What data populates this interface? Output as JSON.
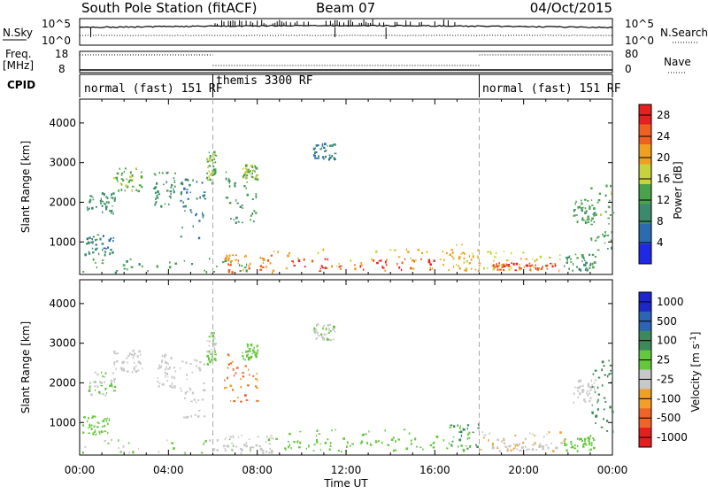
{
  "header": {
    "station": "South Pole Station (fitACF)",
    "beam": "Beam 07",
    "date": "04/Oct/2015"
  },
  "side_labels": {
    "nsky": "N.Sky",
    "nsearch": "N.Search",
    "freq_line1": "Freq.",
    "freq_line2": "[MHz]",
    "nave": "Nave",
    "cpid": "CPID"
  },
  "noise_panel": {
    "left_ticks": [
      "10^5",
      "10^0"
    ],
    "right_ticks": [
      "10^5",
      "10^0"
    ]
  },
  "freq_panel": {
    "left_ticks": [
      "18",
      "8"
    ],
    "right_ticks": [
      "80",
      "0"
    ]
  },
  "cpid_segments": [
    {
      "label": "normal (fast) 151 RF",
      "start_h": 0,
      "end_h": 6
    },
    {
      "label": "themis 3300 RF",
      "start_h": 6,
      "end_h": 18
    },
    {
      "label": "normal (fast) 151 RF",
      "start_h": 18,
      "end_h": 24
    }
  ],
  "chart_data": [
    {
      "type": "heatmap",
      "name": "power",
      "ylabel": "Slant Range [km]",
      "ylim": [
        180,
        4600
      ],
      "yticks": [
        1000,
        2000,
        3000,
        4000
      ],
      "xlim_hours": [
        0,
        24
      ],
      "colorbar_label": "Power [dB]",
      "colorbar_ticks": [
        "4",
        "8",
        "12",
        "16",
        "20",
        "24",
        "28"
      ],
      "colorbar_range": [
        0,
        30
      ],
      "colors": [
        "#1e28e6",
        "#2d6bb0",
        "#3c8a6e",
        "#4aa24a",
        "#c8d23c",
        "#f0a020",
        "#f06020",
        "#e62020"
      ],
      "echo_regions": [
        {
          "t0": 0.1,
          "t1": 1.5,
          "r0": 700,
          "r1": 1200,
          "val": 9
        },
        {
          "t0": 0.3,
          "t1": 1.6,
          "r0": 1700,
          "r1": 2300,
          "val": 10
        },
        {
          "t0": 1.5,
          "t1": 2.8,
          "r0": 2300,
          "r1": 2900,
          "val": 14
        },
        {
          "t0": 3.3,
          "t1": 4.3,
          "r0": 1900,
          "r1": 2800,
          "val": 10
        },
        {
          "t0": 4.5,
          "t1": 5.7,
          "r0": 1100,
          "r1": 2600,
          "val": 9
        },
        {
          "t0": 5.7,
          "t1": 6.1,
          "r0": 2500,
          "r1": 3300,
          "val": 14
        },
        {
          "t0": 6.5,
          "t1": 8.0,
          "r0": 1500,
          "r1": 2800,
          "val": 11
        },
        {
          "t0": 7.3,
          "t1": 8.0,
          "r0": 2600,
          "r1": 3000,
          "val": 15
        },
        {
          "t0": 0.0,
          "t1": 8.7,
          "r0": 250,
          "r1": 600,
          "val": 12
        },
        {
          "t0": 6.5,
          "t1": 8.7,
          "r0": 250,
          "r1": 700,
          "val": 22
        },
        {
          "t0": 8.7,
          "t1": 16.5,
          "r0": 280,
          "r1": 850,
          "val": 19
        },
        {
          "t0": 9.0,
          "t1": 16.0,
          "r0": 280,
          "r1": 600,
          "val": 27
        },
        {
          "t0": 16.5,
          "t1": 18.0,
          "r0": 300,
          "r1": 1000,
          "val": 20
        },
        {
          "t0": 18.0,
          "t1": 21.8,
          "r0": 300,
          "r1": 800,
          "val": 18
        },
        {
          "t0": 18.5,
          "t1": 21.5,
          "r0": 300,
          "r1": 500,
          "val": 26
        },
        {
          "t0": 21.8,
          "t1": 23.2,
          "r0": 300,
          "r1": 700,
          "val": 11
        },
        {
          "t0": 22.2,
          "t1": 23.2,
          "r0": 1500,
          "r1": 2100,
          "val": 12
        },
        {
          "t0": 23.0,
          "t1": 24.0,
          "r0": 800,
          "r1": 2600,
          "val": 13
        },
        {
          "t0": 10.5,
          "t1": 11.5,
          "r0": 3100,
          "r1": 3500,
          "val": 8
        }
      ]
    },
    {
      "type": "heatmap",
      "name": "velocity",
      "ylabel": "Slant Range [km]",
      "ylim": [
        180,
        4600
      ],
      "yticks": [
        1000,
        2000,
        3000,
        4000
      ],
      "xlim_hours": [
        0,
        24
      ],
      "xticks": [
        "00:00",
        "04:00",
        "08:00",
        "12:00",
        "16:00",
        "20:00",
        "00:00"
      ],
      "xlabel": "Time UT",
      "colorbar_label": "Velocity [m s^-1]",
      "colorbar_ticks": [
        "1000",
        "500",
        "100",
        "25",
        "-25",
        "-100",
        "-500",
        "-1000"
      ],
      "colorbar_range": [
        -1200,
        1200
      ],
      "colors": [
        "#e61e1e",
        "#f06428",
        "#f0a028",
        "#c8c8c8",
        "#64c83c",
        "#3c8a5a",
        "#2d64b4",
        "#1e28c8"
      ],
      "echo_regions": [
        {
          "t0": 0.1,
          "t1": 1.5,
          "r0": 700,
          "r1": 1200,
          "val": 200
        },
        {
          "t0": 0.3,
          "t1": 1.6,
          "r0": 1700,
          "r1": 2300,
          "val": 0
        },
        {
          "t0": 1.5,
          "t1": 2.8,
          "r0": 2300,
          "r1": 2900,
          "val": -150
        },
        {
          "t0": 3.3,
          "t1": 4.3,
          "r0": 1900,
          "r1": 2800,
          "val": -200
        },
        {
          "t0": 4.5,
          "t1": 5.7,
          "r0": 1100,
          "r1": 2600,
          "val": -180
        },
        {
          "t0": 5.7,
          "t1": 6.1,
          "r0": 2500,
          "r1": 3300,
          "val": 10
        },
        {
          "t0": 6.5,
          "t1": 8.0,
          "r0": 1500,
          "r1": 2800,
          "val": -600
        },
        {
          "t0": 7.3,
          "t1": 8.0,
          "r0": 2600,
          "r1": 3000,
          "val": 150
        },
        {
          "t0": 0.0,
          "t1": 8.7,
          "r0": 250,
          "r1": 600,
          "val": 0
        },
        {
          "t0": 6.5,
          "t1": 8.7,
          "r0": 250,
          "r1": 700,
          "val": -200
        },
        {
          "t0": 8.7,
          "t1": 16.5,
          "r0": 280,
          "r1": 850,
          "val": 200
        },
        {
          "t0": 9.0,
          "t1": 16.0,
          "r0": 280,
          "r1": 600,
          "val": 120
        },
        {
          "t0": 16.5,
          "t1": 18.0,
          "r0": 300,
          "r1": 1000,
          "val": 300
        },
        {
          "t0": 18.0,
          "t1": 21.8,
          "r0": 300,
          "r1": 800,
          "val": -300
        },
        {
          "t0": 18.5,
          "t1": 21.5,
          "r0": 300,
          "r1": 500,
          "val": -150
        },
        {
          "t0": 21.8,
          "t1": 23.2,
          "r0": 300,
          "r1": 700,
          "val": 150
        },
        {
          "t0": 22.2,
          "t1": 23.2,
          "r0": 1500,
          "r1": 2100,
          "val": -150
        },
        {
          "t0": 23.0,
          "t1": 24.0,
          "r0": 800,
          "r1": 2600,
          "val": 400
        },
        {
          "t0": 10.5,
          "t1": 11.5,
          "r0": 3100,
          "r1": 3500,
          "val": 0
        }
      ]
    }
  ]
}
